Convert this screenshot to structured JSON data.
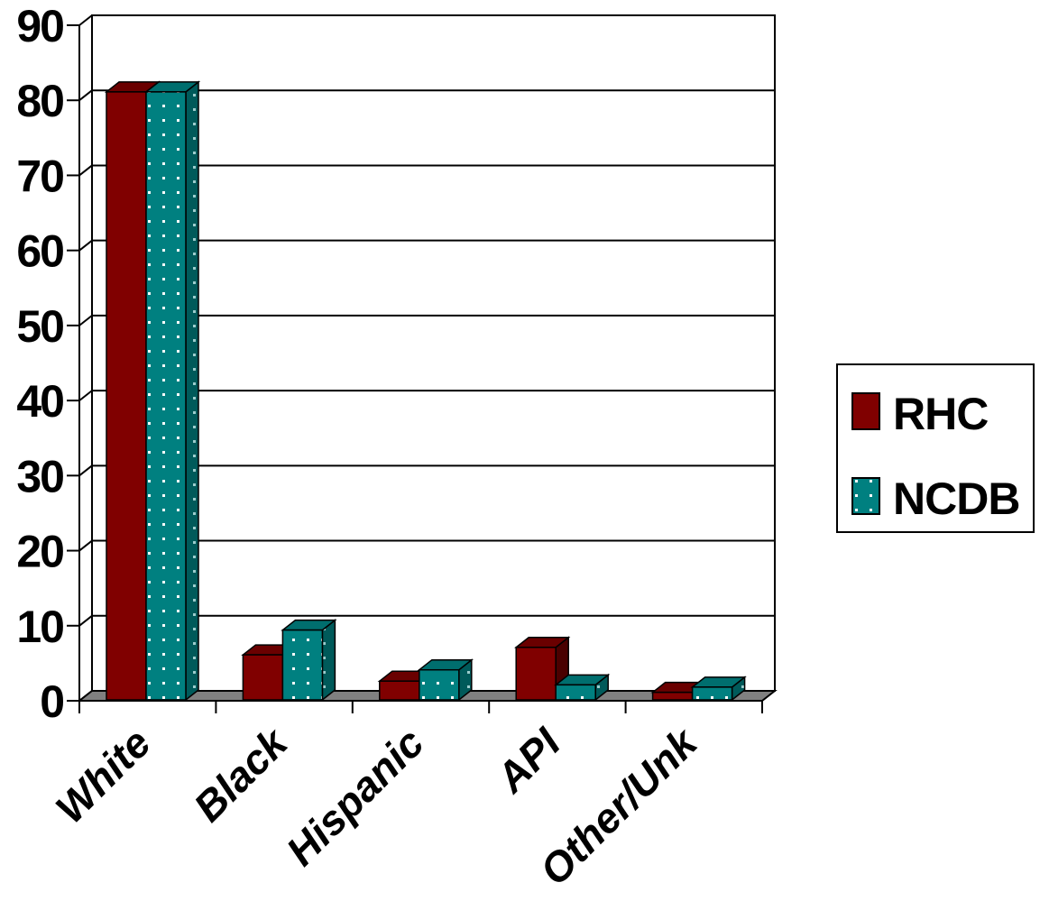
{
  "chart_data": {
    "type": "bar",
    "categories": [
      "White",
      "Black",
      "Hispanic",
      "API",
      "Other/Unk"
    ],
    "series": [
      {
        "name": "RHC",
        "values": [
          81,
          6,
          2.5,
          7,
          1
        ],
        "color": "#800000",
        "pattern": "solid"
      },
      {
        "name": "NCDB",
        "values": [
          81,
          9.3,
          4,
          2,
          1.7
        ],
        "color": "#008080",
        "pattern": "white-dots"
      }
    ],
    "ylim": [
      0,
      90
    ],
    "yticks": [
      "0",
      "10",
      "20",
      "30",
      "40",
      "50",
      "60",
      "70",
      "80",
      "90"
    ],
    "title": "",
    "xlabel": "",
    "ylabel": "",
    "grid": true,
    "legend_position": "right",
    "style": "3d-clustered-column"
  }
}
